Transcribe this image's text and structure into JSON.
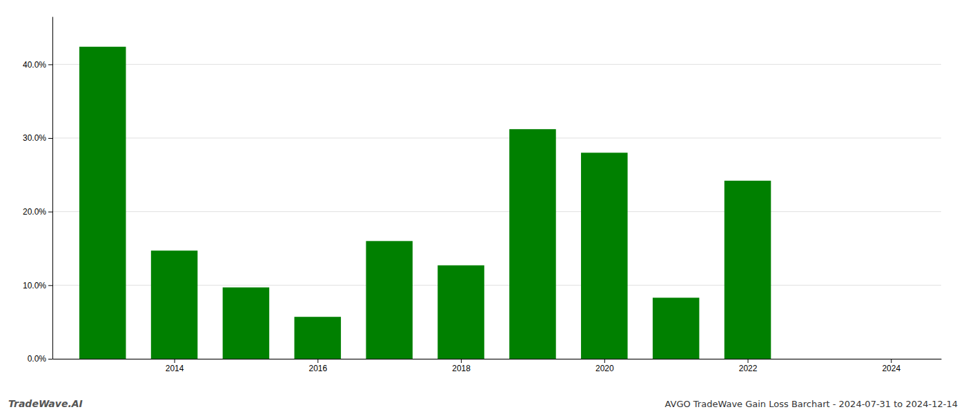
{
  "chart_data": {
    "type": "bar",
    "title": "AVGO TradeWave Gain Loss Barchart - 2024-07-31 to 2024-12-14",
    "annotations": [
      "TradeWave.AI"
    ],
    "x": [
      2013,
      2014,
      2015,
      2016,
      2017,
      2018,
      2019,
      2020,
      2021,
      2022,
      2023
    ],
    "values": [
      0.424,
      0.147,
      0.097,
      0.057,
      0.16,
      0.127,
      0.312,
      0.28,
      0.083,
      0.242,
      0.0
    ],
    "color": "#008000",
    "xlim": [
      2012.3,
      2024.7
    ],
    "xticks": [
      2014,
      2016,
      2018,
      2020,
      2022,
      2024
    ],
    "ylim": [
      0.0,
      0.465
    ],
    "yticks": [
      {
        "value": 0.0,
        "label": "0.0%"
      },
      {
        "value": 0.1,
        "label": "10.0%"
      },
      {
        "value": 0.2,
        "label": "20.0%"
      },
      {
        "value": 0.3,
        "label": "30.0%"
      },
      {
        "value": 0.4,
        "label": "40.0%"
      }
    ],
    "grid": true
  }
}
